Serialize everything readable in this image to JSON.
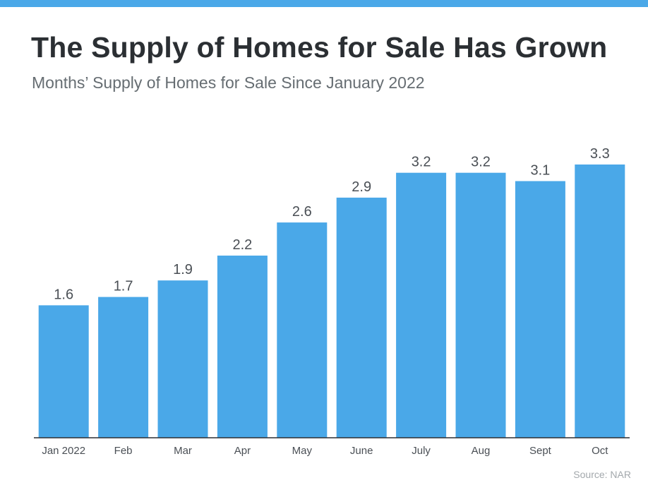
{
  "header": {
    "title": "The Supply of Homes for Sale Has Grown",
    "subtitle": "Months’ Supply of Homes for Sale Since January 2022"
  },
  "source": "Source: NAR",
  "colors": {
    "accent_bar": "#4aa8e8",
    "bar": "#4aa8e8",
    "axis": "#2b2f33",
    "value_label": "#4a4f55",
    "tick_label": "#4a4f55"
  },
  "chart_data": {
    "type": "bar",
    "categories": [
      "Jan 2022",
      "Feb",
      "Mar",
      "Apr",
      "May",
      "June",
      "July",
      "Aug",
      "Sept",
      "Oct"
    ],
    "values": [
      1.6,
      1.7,
      1.9,
      2.2,
      2.6,
      2.9,
      3.2,
      3.2,
      3.1,
      3.3
    ],
    "value_labels": [
      "1.6",
      "1.7",
      "1.9",
      "2.2",
      "2.6",
      "2.9",
      "3.2",
      "3.2",
      "3.1",
      "3.3"
    ],
    "title": "The Supply of Homes for Sale Has Grown",
    "subtitle": "Months’ Supply of Homes for Sale Since January 2022",
    "xlabel": "",
    "ylabel": "",
    "ylim": [
      0,
      3.3
    ],
    "grid": false,
    "legend": "none",
    "data_labels": true
  }
}
